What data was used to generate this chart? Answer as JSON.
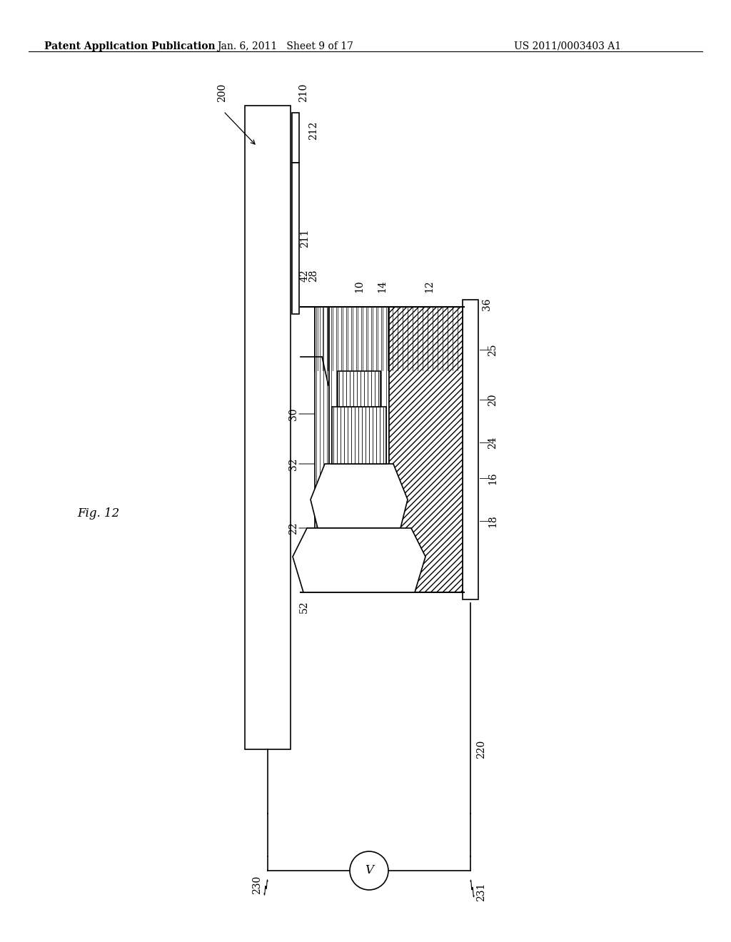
{
  "bg_color": "#ffffff",
  "header_left": "Patent Application Publication",
  "header_center": "Jan. 6, 2011   Sheet 9 of 17",
  "header_right": "US 2011/0003403 A1",
  "fig_label": "Fig. 12",
  "label_fontsize": 10,
  "header_fontsize": 10
}
